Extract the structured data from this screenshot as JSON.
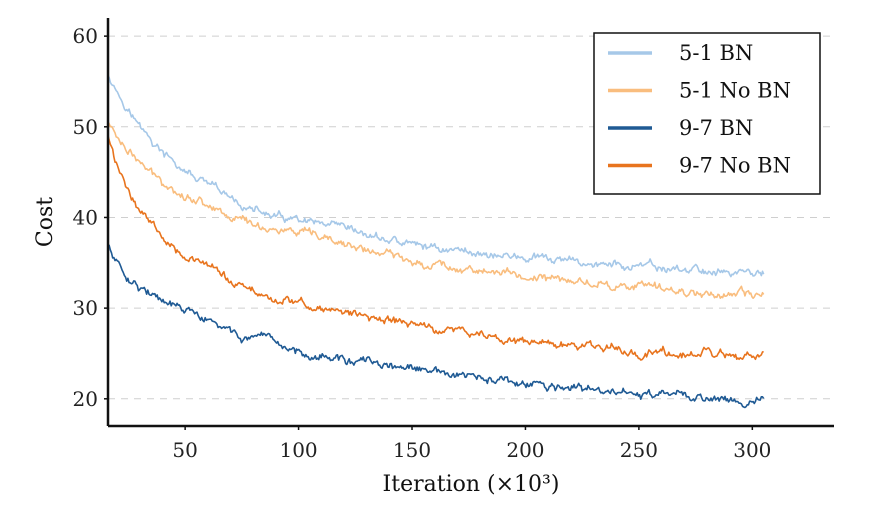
{
  "chart_data": {
    "type": "line",
    "xlabel": "Iteration (×10³)",
    "ylabel": "Cost",
    "xlim": [
      16,
      336
    ],
    "ylim": [
      17,
      62
    ],
    "xticks": [
      50,
      100,
      150,
      200,
      250,
      300
    ],
    "yticks": [
      20,
      30,
      40,
      50,
      60
    ],
    "grid": "horizontal dashed",
    "legend_position": "top-right",
    "x": [
      16,
      20,
      25,
      30,
      35,
      40,
      50,
      60,
      70,
      80,
      90,
      100,
      120,
      150,
      200,
      250,
      305
    ],
    "series": [
      {
        "name": "5-1 BN",
        "color": "#a6c8e8",
        "values": [
          56.0,
          54.0,
          52.0,
          50.0,
          48.5,
          47.0,
          45.0,
          43.5,
          42.0,
          40.8,
          40.0,
          39.5,
          38.5,
          37.0,
          35.5,
          34.5,
          33.8
        ]
      },
      {
        "name": "5-1 No BN",
        "color": "#f9bd7e",
        "values": [
          50.5,
          49.0,
          47.5,
          46.0,
          44.8,
          44.0,
          42.5,
          41.5,
          40.2,
          39.3,
          38.7,
          38.2,
          37.0,
          35.2,
          33.5,
          32.3,
          31.2
        ]
      },
      {
        "name": "9-7 BN",
        "color": "#1f5a94",
        "values": [
          37.0,
          35.0,
          33.5,
          32.5,
          31.5,
          30.5,
          29.8,
          28.5,
          27.3,
          26.5,
          25.8,
          25.3,
          24.3,
          23.2,
          21.5,
          20.5,
          19.8
        ]
      },
      {
        "name": "9-7 No BN",
        "color": "#e8741e",
        "values": [
          49.0,
          45.5,
          43.0,
          41.0,
          39.5,
          38.0,
          36.0,
          34.5,
          33.0,
          31.8,
          31.0,
          30.5,
          29.5,
          28.2,
          26.3,
          25.2,
          24.5
        ]
      }
    ]
  }
}
